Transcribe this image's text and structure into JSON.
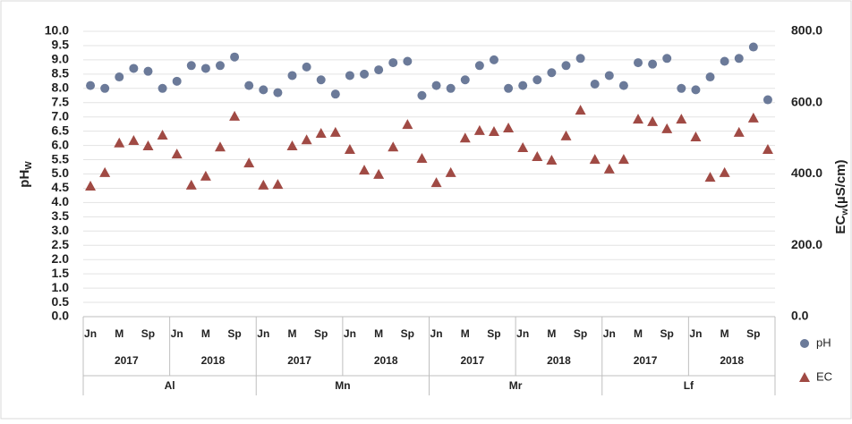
{
  "chart_data": {
    "type": "scatter",
    "y_label": "pH",
    "y_label_sub": "W",
    "y2_label": "EC",
    "y2_label_sub": "w",
    "y2_label_unit": "(µS/cm)",
    "categories": [
      "Jn",
      null,
      "M",
      null,
      "Sp",
      null,
      "Jn",
      null,
      "M",
      null,
      "Sp",
      null,
      "Jn",
      null,
      "M",
      null,
      "Sp",
      null,
      "Jn",
      null,
      "M",
      null,
      "Sp",
      null,
      "Jn",
      null,
      "M",
      null,
      "Sp",
      null,
      "Jn",
      null,
      "M",
      null,
      "Sp",
      null,
      "Jn",
      null,
      "M",
      null,
      "Sp",
      null,
      "Jn",
      null,
      "M",
      null,
      "Sp",
      null
    ],
    "years": [
      "2017",
      "2018",
      "2017",
      "2018",
      "2017",
      "2018",
      "2017",
      "2018"
    ],
    "sites": [
      "Al",
      "Mn",
      "Mr",
      "Lf"
    ],
    "series": [
      {
        "name": "pH",
        "color": "#6b7a99",
        "marker": "circle",
        "values": [
          8.1,
          8.0,
          8.4,
          8.7,
          8.6,
          8.0,
          8.25,
          8.8,
          8.7,
          8.8,
          9.1,
          8.1,
          7.95,
          7.85,
          8.45,
          8.75,
          8.3,
          7.8,
          8.45,
          8.5,
          8.65,
          8.9,
          8.95,
          7.75,
          8.1,
          8.0,
          8.3,
          8.8,
          9.0,
          8.0,
          8.1,
          8.3,
          8.55,
          8.8,
          9.05,
          8.15,
          8.45,
          8.1,
          8.9,
          8.85,
          9.05,
          8.0,
          7.95,
          8.4,
          8.95,
          9.05,
          9.45,
          7.6
        ]
      },
      {
        "name": "EC",
        "color": "#a04a44",
        "marker": "triangle",
        "axis": "y2",
        "values": [
          366,
          404,
          487,
          494,
          479,
          509,
          456,
          369,
          394,
          476,
          562,
          431,
          369,
          371,
          479,
          496,
          514,
          517,
          469,
          411,
          399,
          476,
          539,
          444,
          376,
          404,
          501,
          522,
          519,
          529,
          474,
          449,
          439,
          507,
          579,
          441,
          414,
          441,
          554,
          547,
          527,
          554,
          504,
          391,
          404,
          517,
          557,
          469
        ]
      }
    ],
    "ylim": [
      0,
      10
    ],
    "yticks": [
      {
        "value": 0,
        "label": "0.0"
      },
      {
        "value": 0.5,
        "label": "0.5"
      },
      {
        "value": 1,
        "label": "1.0"
      },
      {
        "value": 1.5,
        "label": "1.5"
      },
      {
        "value": 2,
        "label": "2.0"
      },
      {
        "value": 2.5,
        "label": "2.5"
      },
      {
        "value": 3,
        "label": "3.0"
      },
      {
        "value": 3.5,
        "label": "3.5"
      },
      {
        "value": 4,
        "label": "4.0"
      },
      {
        "value": 4.5,
        "label": "4.5"
      },
      {
        "value": 5,
        "label": "5.0"
      },
      {
        "value": 5.5,
        "label": "5.5"
      },
      {
        "value": 6,
        "label": "6.0"
      },
      {
        "value": 6.5,
        "label": "6.5"
      },
      {
        "value": 7,
        "label": "7.0"
      },
      {
        "value": 7.5,
        "label": "7.5"
      },
      {
        "value": 8,
        "label": "8.0"
      },
      {
        "value": 8.5,
        "label": "8.5"
      },
      {
        "value": 9,
        "label": "9.0"
      },
      {
        "value": 9.5,
        "label": "9.5"
      },
      {
        "value": 10,
        "label": "10.0"
      }
    ],
    "y2lim": [
      0,
      800
    ],
    "y2ticks": [
      {
        "value": 0,
        "label": "0.0"
      },
      {
        "value": 200,
        "label": "200.0"
      },
      {
        "value": 400,
        "label": "400.0"
      },
      {
        "value": 600,
        "label": "600.0"
      },
      {
        "value": 800,
        "label": "800.0"
      }
    ],
    "grid": true,
    "legend": "right"
  }
}
